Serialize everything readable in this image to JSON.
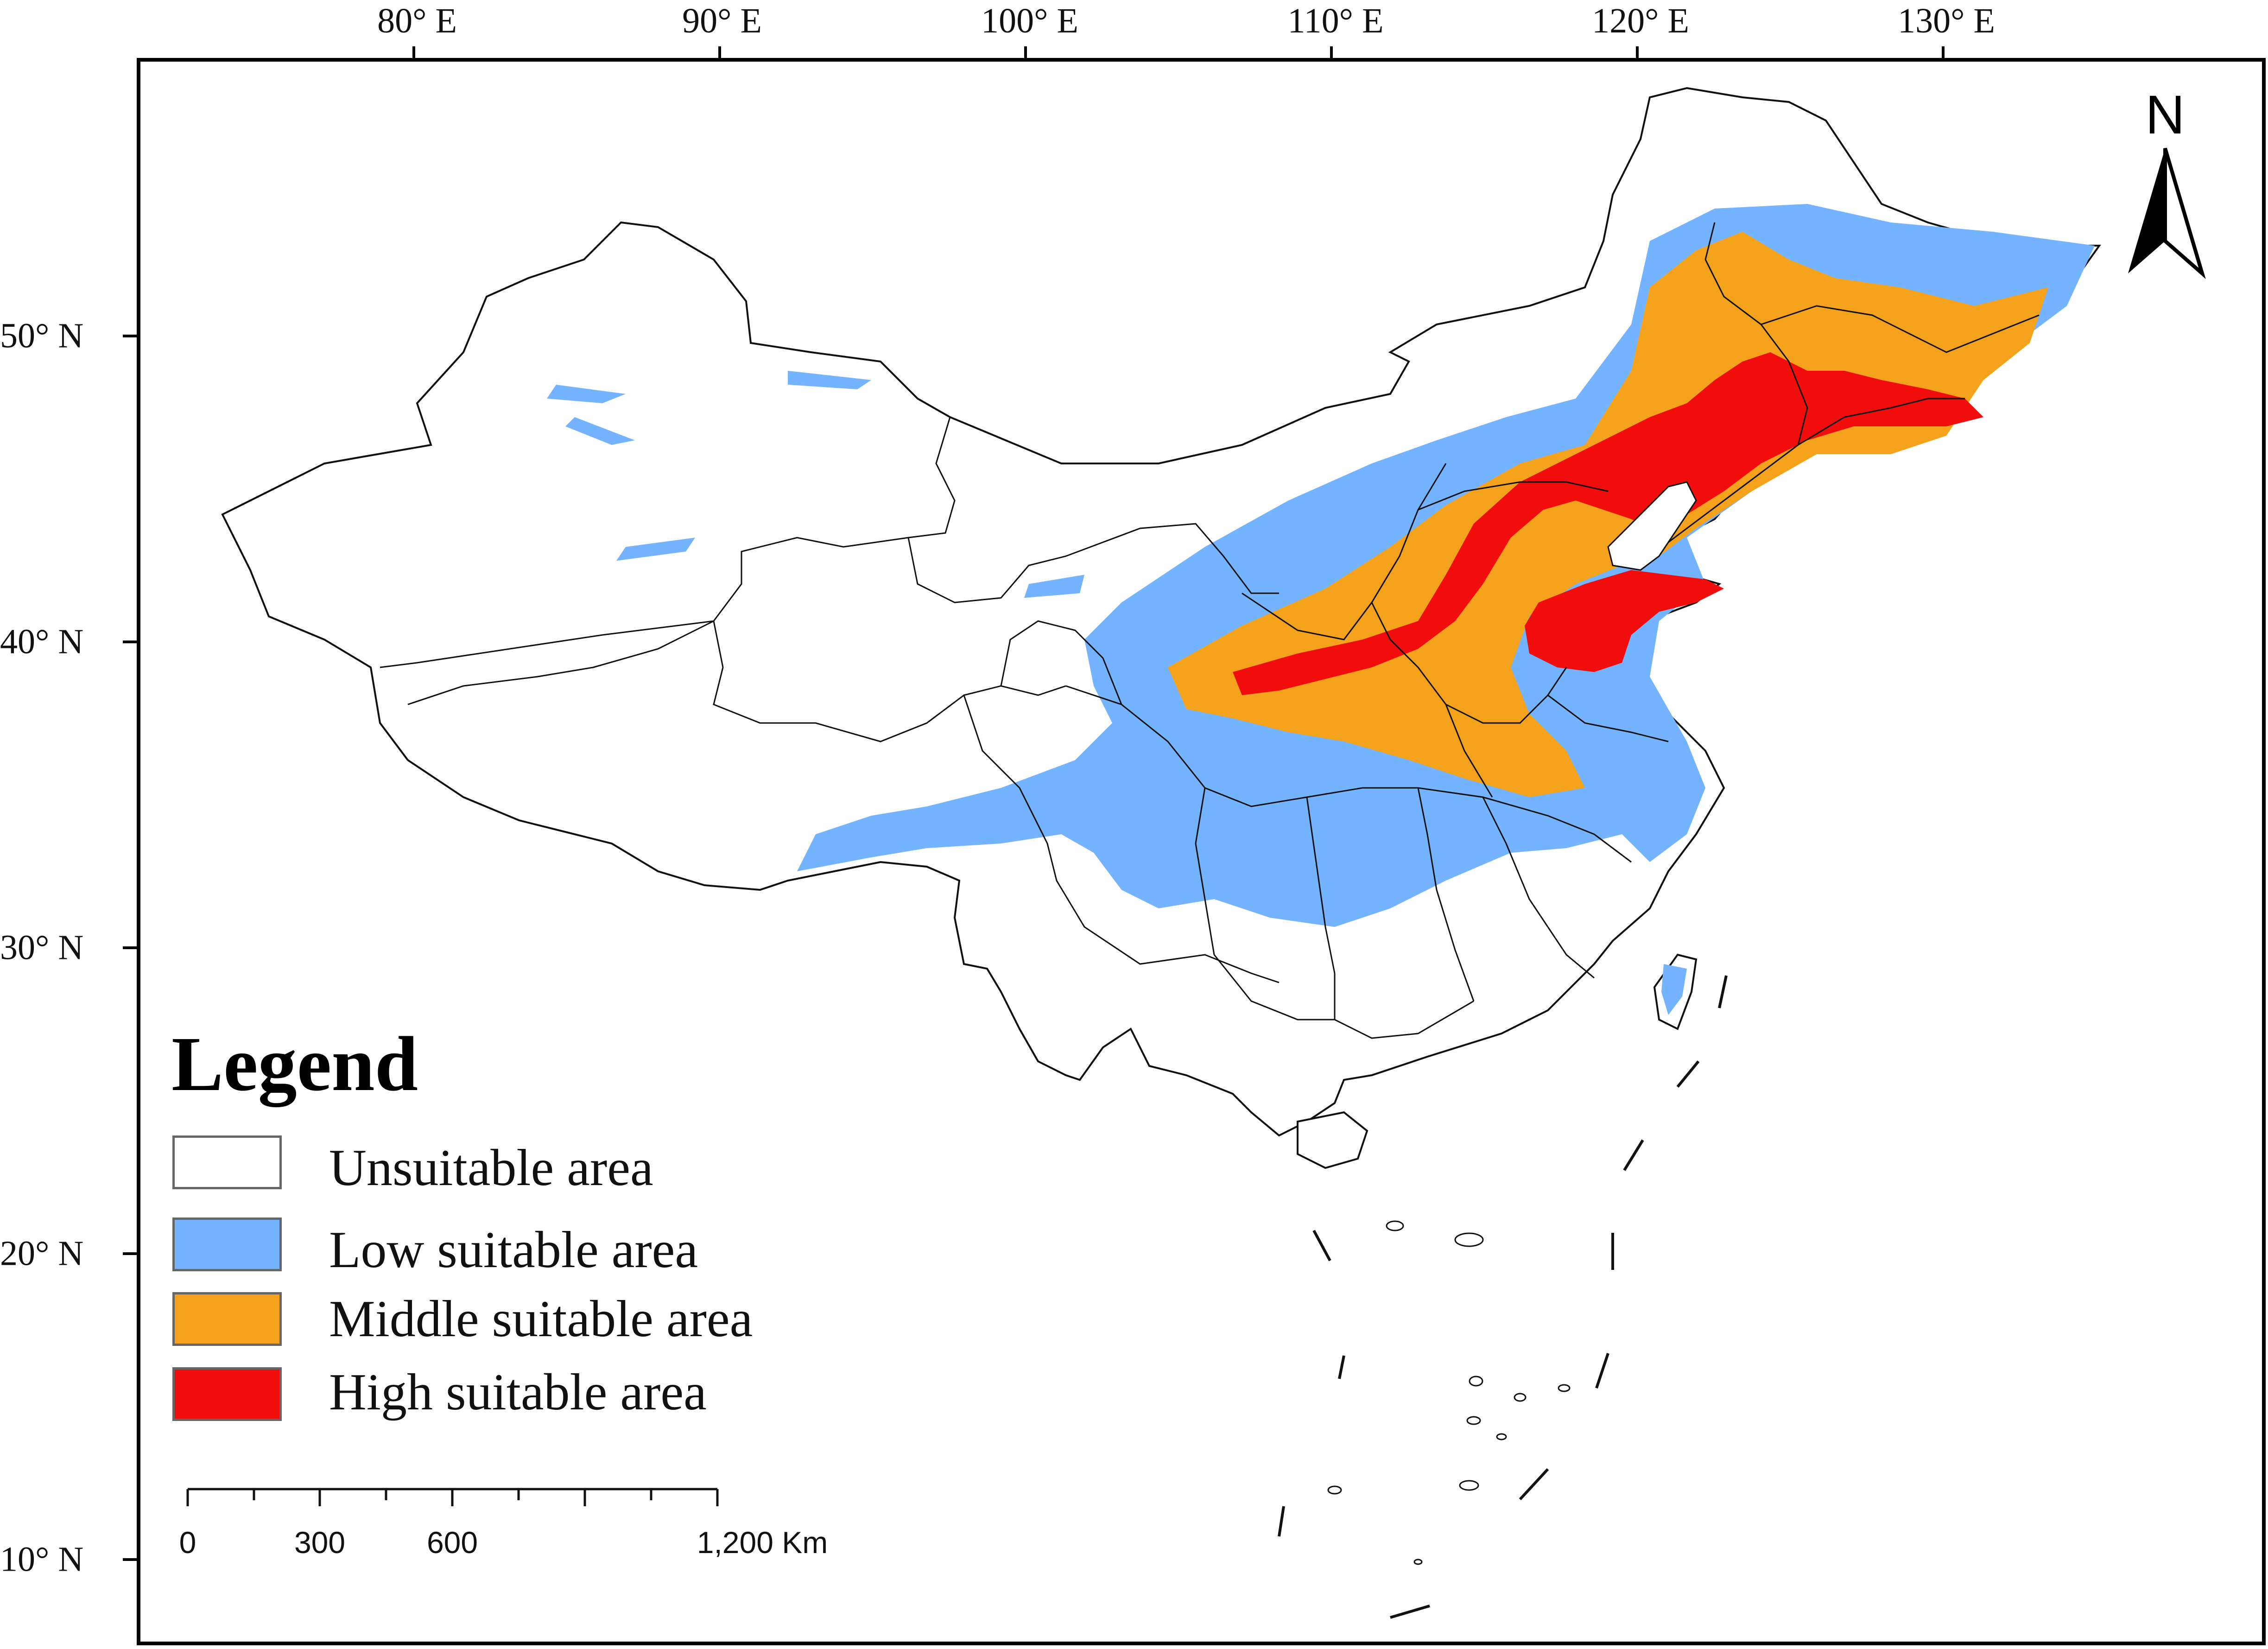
{
  "map": {
    "longitude_labels": [
      "80° E",
      "90° E",
      "100° E",
      "110° E",
      "120° E",
      "130° E"
    ],
    "latitude_labels": [
      "50° N",
      "40° N",
      "30° N",
      "20° N",
      "10° N"
    ],
    "north_arrow": {
      "label": "N",
      "icon": "north-arrow-icon"
    }
  },
  "legend": {
    "title": "Legend",
    "items": [
      {
        "label": "Unsuitable area",
        "color": "#ffffff"
      },
      {
        "label": "Low suitable area",
        "color": "#74b3ff"
      },
      {
        "label": "Middle suitable area",
        "color": "#f4a21b"
      },
      {
        "label": "High suitable area",
        "color": "#f20d0d"
      }
    ]
  },
  "scale_bar": {
    "labels": [
      "0",
      "300",
      "600",
      "1,200 Km"
    ]
  }
}
